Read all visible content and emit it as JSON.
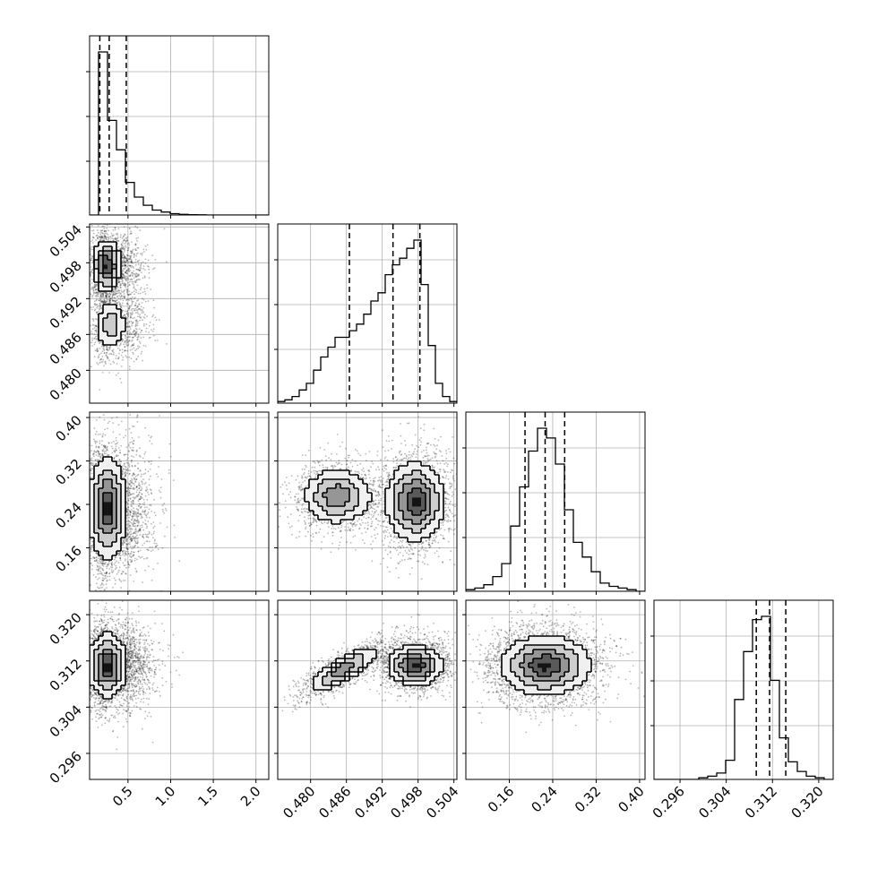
{
  "chart_data": {
    "type": "corner",
    "grid": true,
    "parameters": [
      {
        "id": "p1",
        "lim": [
          0.05,
          2.15
        ],
        "ticks": [
          "0.5",
          "1.0",
          "1.5",
          "2.0"
        ],
        "tick_values": [
          0.5,
          1.0,
          1.5,
          2.0
        ],
        "quantiles": [
          0.17,
          0.28,
          0.48
        ]
      },
      {
        "id": "p2",
        "lim": [
          0.4745,
          0.5045
        ],
        "ticks": [
          "0.480",
          "0.486",
          "0.492",
          "0.498",
          "0.504"
        ],
        "tick_values": [
          0.48,
          0.486,
          0.492,
          0.498,
          0.504
        ],
        "quantiles": [
          0.4865,
          0.4938,
          0.4983
        ]
      },
      {
        "id": "p3",
        "lim": [
          0.08,
          0.41
        ],
        "ticks": [
          "0.16",
          "0.24",
          "0.32",
          "0.40"
        ],
        "tick_values": [
          0.16,
          0.24,
          0.32,
          0.4
        ],
        "quantiles": [
          0.189,
          0.226,
          0.262
        ]
      },
      {
        "id": "p4",
        "lim": [
          0.2915,
          0.3225
        ],
        "ticks": [
          "0.296",
          "0.304",
          "0.312",
          "0.320"
        ],
        "tick_values": [
          0.296,
          0.304,
          0.312,
          0.32
        ],
        "quantiles": [
          0.3092,
          0.3115,
          0.3143
        ]
      }
    ],
    "histograms": [
      {
        "param": "p1",
        "edges": [
          0.05,
          2.15
        ],
        "counts": [
          0.0,
          1.0,
          0.58,
          0.4,
          0.2,
          0.11,
          0.06,
          0.03,
          0.018,
          0.008,
          0.004,
          0.002,
          0.001,
          0,
          0,
          0,
          0,
          0,
          0,
          0
        ]
      },
      {
        "param": "p2",
        "edges": [
          0.4745,
          0.5045
        ],
        "counts": [
          0.01,
          0.02,
          0.04,
          0.08,
          0.12,
          0.2,
          0.28,
          0.34,
          0.4,
          0.4,
          0.44,
          0.48,
          0.54,
          0.62,
          0.67,
          0.78,
          0.84,
          0.88,
          0.94,
          0.99,
          0.72,
          0.35,
          0.12,
          0.04,
          0.01
        ]
      },
      {
        "param": "p3",
        "edges": [
          0.08,
          0.41
        ],
        "counts": [
          0.01,
          0.02,
          0.04,
          0.09,
          0.17,
          0.4,
          0.64,
          0.86,
          1.0,
          0.94,
          0.78,
          0.5,
          0.3,
          0.21,
          0.12,
          0.05,
          0.03,
          0.02,
          0.01,
          0.0
        ]
      },
      {
        "param": "p4",
        "edges": [
          0.2915,
          0.3225
        ],
        "counts": [
          0,
          0,
          0,
          0,
          0,
          0.01,
          0.02,
          0.04,
          0.12,
          0.5,
          0.8,
          1.0,
          1.02,
          0.62,
          0.26,
          0.11,
          0.05,
          0.02,
          0.01,
          0.0
        ]
      }
    ],
    "pairs": [
      {
        "x": "p1",
        "y": "p2",
        "modes": [
          {
            "mx": 0.25,
            "my": 0.4975,
            "sx": 0.08,
            "sy": 0.0021,
            "w": 0.65,
            "rho": 0.0
          },
          {
            "mx": 0.3,
            "my": 0.4875,
            "sx": 0.09,
            "sy": 0.0022,
            "w": 0.35,
            "rho": 0.0
          }
        ]
      },
      {
        "x": "p1",
        "y": "p3",
        "modes": [
          {
            "mx": 0.26,
            "my": 0.233,
            "sx": 0.11,
            "sy": 0.045,
            "w": 1.0,
            "rho": 0.0
          }
        ]
      },
      {
        "x": "p1",
        "y": "p4",
        "modes": [
          {
            "mx": 0.26,
            "my": 0.3112,
            "sx": 0.11,
            "sy": 0.0027,
            "w": 1.0,
            "rho": 0.0
          }
        ]
      },
      {
        "x": "p2",
        "y": "p3",
        "modes": [
          {
            "mx": 0.4975,
            "my": 0.245,
            "sx": 0.0024,
            "sy": 0.035,
            "w": 0.62,
            "rho": 0.0
          },
          {
            "mx": 0.4845,
            "my": 0.255,
            "sx": 0.0028,
            "sy": 0.025,
            "w": 0.38,
            "rho": 0.0
          }
        ]
      },
      {
        "x": "p2",
        "y": "p4",
        "modes": [
          {
            "mx": 0.4975,
            "my": 0.3112,
            "sx": 0.0022,
            "sy": 0.0017,
            "w": 0.62,
            "rho": 0.0
          },
          {
            "mx": 0.4855,
            "my": 0.3105,
            "sx": 0.0028,
            "sy": 0.0019,
            "w": 0.38,
            "rho": 0.8
          }
        ]
      },
      {
        "x": "p3",
        "y": "p4",
        "modes": [
          {
            "mx": 0.226,
            "my": 0.3112,
            "sx": 0.04,
            "sy": 0.0025,
            "w": 1.0,
            "rho": 0.0
          }
        ]
      }
    ]
  }
}
